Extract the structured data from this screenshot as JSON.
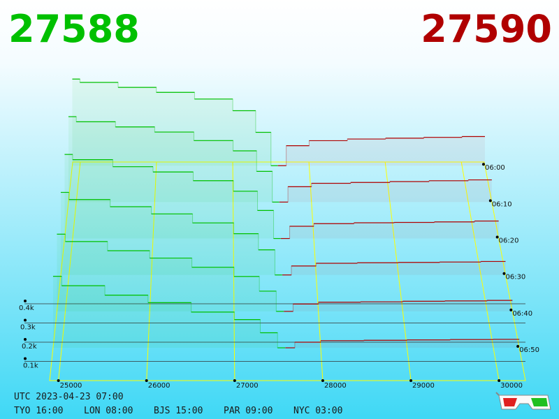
{
  "chart_data": {
    "type": "depth3d",
    "bid_price": "27588",
    "ask_price": "27590",
    "bid_color": "#00c000",
    "ask_color": "#b00000",
    "xlim": [
      24900,
      30300
    ],
    "xticks": [
      25000,
      26000,
      27000,
      28000,
      29000,
      30000
    ],
    "tlim": [
      359,
      419
    ],
    "tticks": [
      {
        "value": 360,
        "label": "06:00"
      },
      {
        "value": 370,
        "label": "06:10"
      },
      {
        "value": 380,
        "label": "06:20"
      },
      {
        "value": 390,
        "label": "06:30"
      },
      {
        "value": 400,
        "label": "06:40"
      },
      {
        "value": 410,
        "label": "06:50"
      }
    ],
    "zticks": [
      {
        "value": 100,
        "label": "0.1k"
      },
      {
        "value": 200,
        "label": "0.2k"
      },
      {
        "value": 300,
        "label": "0.3k"
      },
      {
        "value": 400,
        "label": "0.4k"
      }
    ],
    "bid_levels": [
      25000,
      25500,
      26000,
      26500,
      27000,
      27300,
      27500,
      27588
    ],
    "ask_levels": [
      27590,
      27700,
      28000,
      28500,
      29000,
      29500,
      30000
    ],
    "snapshots": [
      {
        "time": 360,
        "bids": [
          520,
          500,
          470,
          440,
          400,
          330,
          200,
          0
        ],
        "asks": [
          0,
          120,
          150,
          160,
          165,
          170,
          175
        ]
      },
      {
        "time": 370,
        "bids": [
          500,
          470,
          440,
          410,
          360,
          300,
          180,
          0
        ],
        "asks": [
          0,
          90,
          110,
          115,
          120,
          125,
          130
        ]
      },
      {
        "time": 380,
        "bids": [
          480,
          450,
          410,
          380,
          330,
          270,
          160,
          0
        ],
        "asks": [
          0,
          70,
          85,
          90,
          92,
          95,
          100
        ]
      },
      {
        "time": 390,
        "bids": [
          460,
          420,
          380,
          340,
          290,
          230,
          140,
          0
        ],
        "asks": [
          0,
          50,
          65,
          68,
          70,
          72,
          75
        ]
      },
      {
        "time": 400,
        "bids": [
          420,
          380,
          330,
          290,
          240,
          190,
          110,
          0
        ],
        "asks": [
          0,
          40,
          50,
          52,
          55,
          57,
          60
        ]
      },
      {
        "time": 410,
        "bids": [
          380,
          330,
          280,
          240,
          190,
          150,
          80,
          0
        ],
        "asks": [
          0,
          30,
          38,
          40,
          42,
          44,
          45
        ]
      }
    ],
    "utc": "UTC 2023-04-23 07:00",
    "clocks": [
      "TYO 16:00",
      "LON 08:00",
      "BJS 15:00",
      "PAR 09:00",
      "NYC 03:00"
    ]
  }
}
